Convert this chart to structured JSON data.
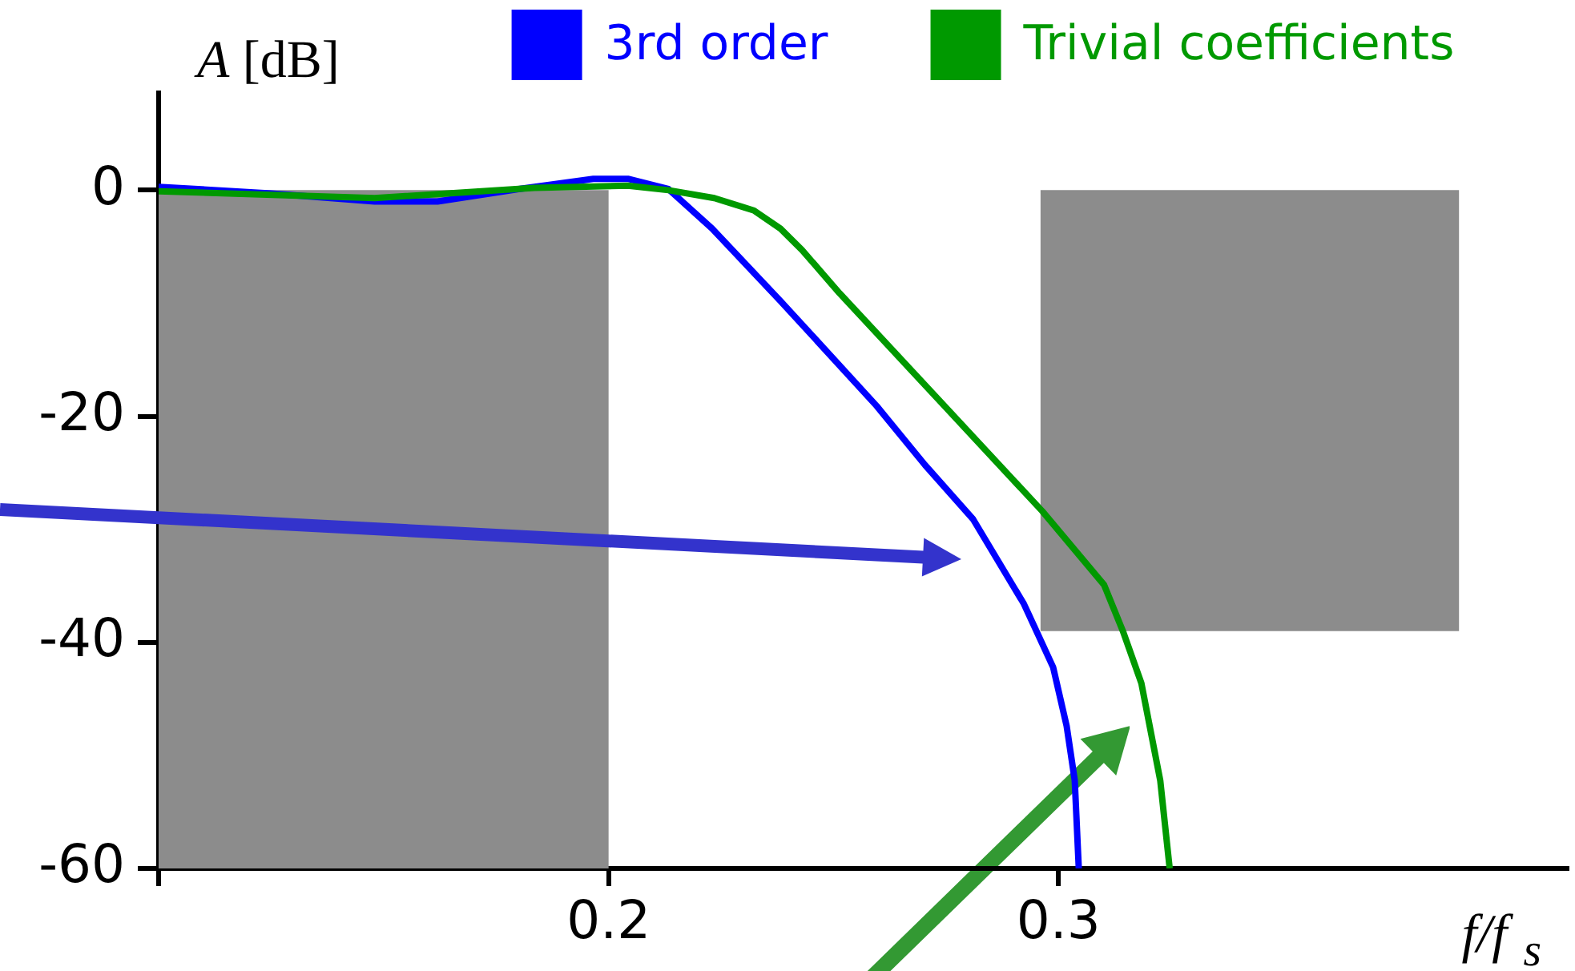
{
  "chart_data": {
    "type": "line",
    "xlabel": "f/f$_{s}$",
    "ylabel": "A [dB]",
    "xlim": [
      0.1,
      0.413
    ],
    "ylim": [
      -60,
      8.6
    ],
    "xticks": [
      {
        "value": 0.1,
        "label": null
      },
      0.2,
      0.3
    ],
    "yticks": [
      -60,
      -40,
      -20,
      0
    ],
    "legend": "top",
    "series": [
      {
        "type": "histogram",
        "color": "#8c8c8c",
        "bins": [
          0.1,
          0.2
        ],
        "values": [
          60
        ],
        "base": [
          -60
        ]
      },
      {
        "type": "histogram",
        "color": "#8c8c8c",
        "bins": [
          0.296,
          0.389
        ],
        "values": [
          39
        ],
        "base": [
          -39
        ]
      },
      {
        "name": "3rd order",
        "color": "#0000ff",
        "x": [
          0.1,
          0.125,
          0.148,
          0.162,
          0.18,
          0.1966,
          0.2043,
          0.2133,
          0.223,
          0.2382,
          0.2596,
          0.2703,
          0.281,
          0.2923,
          0.2988,
          0.3018,
          0.3036,
          0.3045
        ],
        "values": [
          0.3,
          -0.3,
          -1.0,
          -1.0,
          0.1,
          1.0,
          1.0,
          0.1,
          -3.4,
          -9.8,
          -19.1,
          -24.3,
          -29.1,
          -36.6,
          -42.2,
          -47.4,
          -52.2,
          -60
        ]
      },
      {
        "name": "Trivial coefficients",
        "color": "#009900",
        "x": [
          0.1,
          0.148,
          0.1835,
          0.2043,
          0.2133,
          0.2235,
          0.2323,
          0.2382,
          0.243,
          0.2513,
          0.2679,
          0.2964,
          0.3101,
          0.3143,
          0.3184,
          0.3226,
          0.3247
        ],
        "values": [
          -0.1,
          -0.7,
          0.2,
          0.4,
          0,
          -0.7,
          -1.8,
          -3.4,
          -5.3,
          -9.1,
          -16.2,
          -28.4,
          -34.9,
          -39.0,
          -43.6,
          -52.2,
          -60
        ]
      }
    ]
  }
}
